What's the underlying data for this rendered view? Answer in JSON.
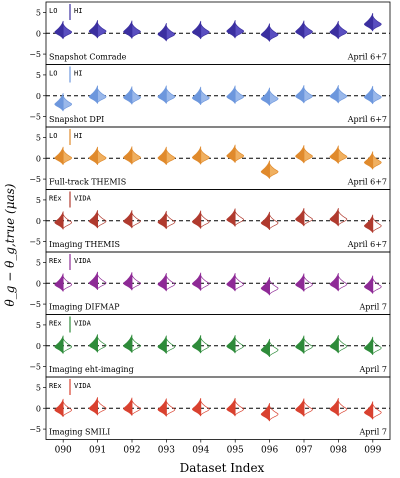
{
  "figure": {
    "ylabel": "θ_g − θ_g,true (μas)",
    "xlabel": "Dataset Index",
    "categories": [
      "090",
      "091",
      "092",
      "093",
      "094",
      "095",
      "096",
      "097",
      "098",
      "099"
    ],
    "yticks": [
      "5",
      "0",
      "−5"
    ]
  },
  "chart_data": {
    "type": "violin",
    "categories": [
      "090",
      "091",
      "092",
      "093",
      "094",
      "095",
      "096",
      "097",
      "098",
      "099"
    ],
    "ylim": [
      -7.5,
      7.5
    ],
    "xlabel": "Dataset Index",
    "ylabel": "θ_g − θ_g,true (μas)",
    "reference_line_y": 0,
    "panels": [
      {
        "name": "Snapshot Comrade",
        "date": "April 6+7",
        "legend": [
          "LO",
          "HI"
        ],
        "color": "#3b2fa0",
        "light": "#5a4fc0",
        "medians": [
          0.3,
          0.5,
          0.4,
          -0.2,
          0.3,
          0.5,
          -0.3,
          0.4,
          0.3,
          2.2
        ]
      },
      {
        "name": "Snapshot DPI",
        "date": "April 6+7",
        "legend": [
          "LO",
          "HI"
        ],
        "color": "#6d97dd",
        "light": "#9ab8ea",
        "medians": [
          -2.0,
          -0.2,
          -0.4,
          -0.2,
          -0.5,
          -0.2,
          -0.7,
          -0.1,
          -0.1,
          -0.3
        ]
      },
      {
        "name": "Full-track THEMIS",
        "date": "April 6+7",
        "legend": [
          "LO",
          "HI"
        ],
        "color": "#e08a2c",
        "light": "#f0b060",
        "medians": [
          0.1,
          0.1,
          0.2,
          0.1,
          0.2,
          0.6,
          -3.2,
          0.5,
          0.4,
          -1.0
        ]
      },
      {
        "name": "Imaging THEMIS",
        "date": "April 6+7",
        "legend": [
          "REx",
          "VIDA"
        ],
        "color": "#b03a2e",
        "light": "#d9796e",
        "medians": [
          -0.4,
          -0.1,
          -0.1,
          -0.3,
          -0.2,
          0.3,
          -0.5,
          0.4,
          0.4,
          -1.2
        ]
      },
      {
        "name": "Imaging DIFMAP",
        "date": "April 7",
        "legend": [
          "REx",
          "VIDA"
        ],
        "color": "#8e2a96",
        "light": "#b873bf",
        "medians": [
          -0.3,
          0.1,
          0.0,
          -0.2,
          -0.1,
          -0.2,
          -1.2,
          -0.3,
          -0.2,
          -0.8
        ]
      },
      {
        "name": "Imaging eht-imaging",
        "date": "April 7",
        "legend": [
          "REx",
          "VIDA"
        ],
        "color": "#2e8b3a",
        "light": "#6fba78",
        "medians": [
          -0.2,
          0.1,
          0.0,
          -0.2,
          -0.1,
          -0.1,
          -1.0,
          -0.2,
          -0.1,
          -0.5
        ]
      },
      {
        "name": "Imaging SMILI",
        "date": "April 7",
        "legend": [
          "REx",
          "VIDA"
        ],
        "color": "#d9412f",
        "light": "#ef8474",
        "medians": [
          -0.4,
          0.0,
          -0.1,
          -0.3,
          -0.2,
          -0.2,
          -1.4,
          -0.3,
          -0.2,
          -1.0
        ]
      }
    ]
  }
}
